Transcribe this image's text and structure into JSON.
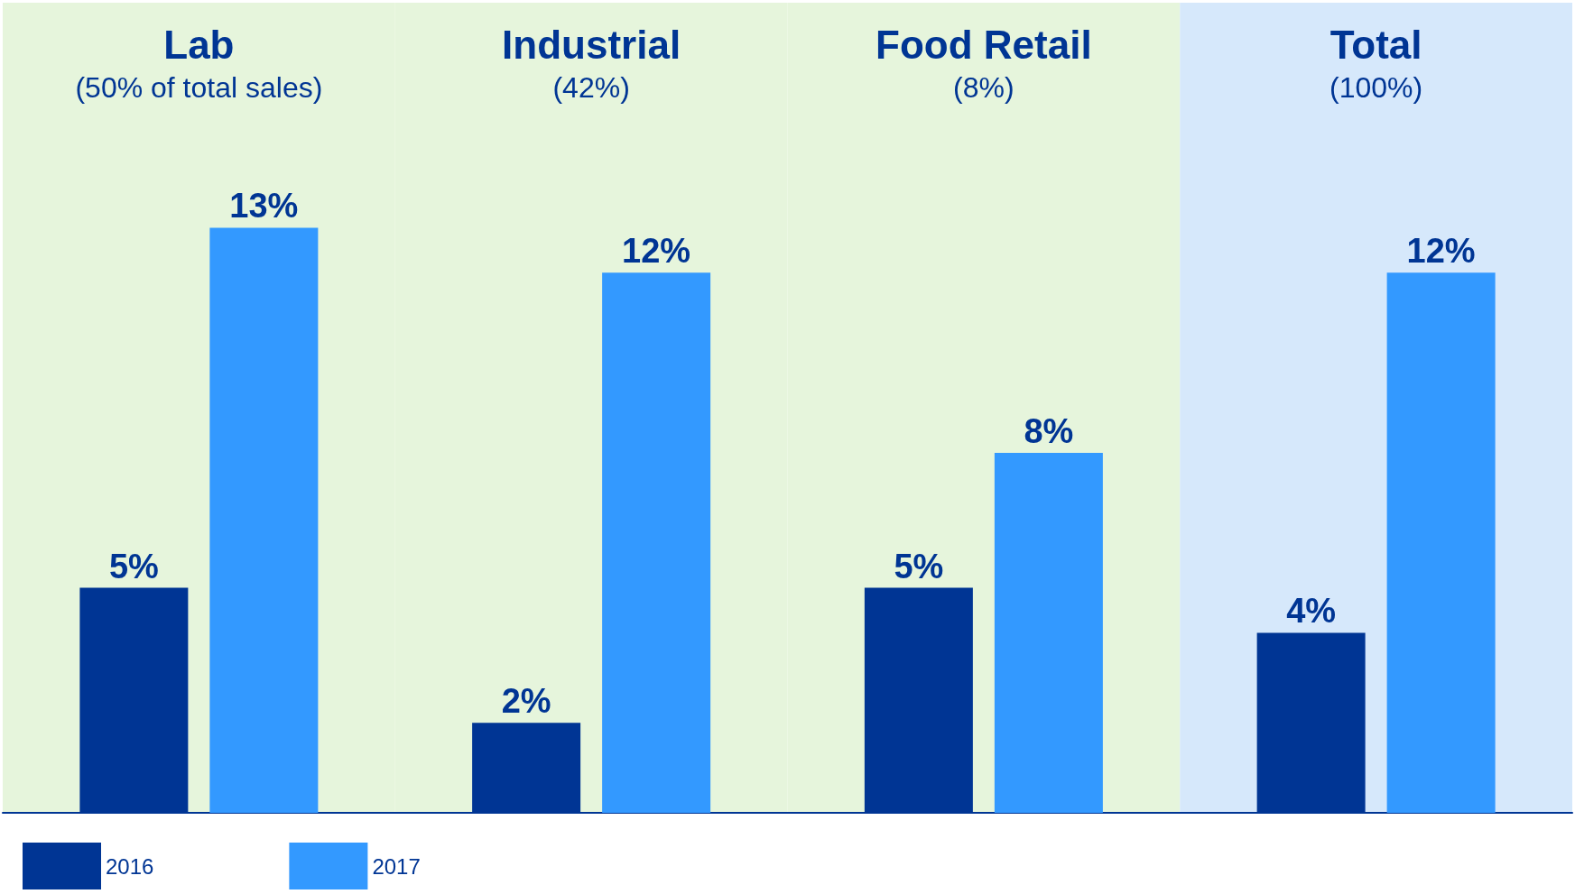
{
  "chart_data": {
    "type": "bar",
    "categories": [
      "Lab\n(50% of total sales)",
      "Industrial\n(42%)",
      "Food Retail\n(8%)",
      "Total\n(100%)"
    ],
    "series": [
      {
        "name": "2016",
        "color": "#003594",
        "values": [
          5,
          2,
          5,
          4
        ],
        "value_labels": [
          "5%",
          "2%",
          "5%",
          "4%"
        ]
      },
      {
        "name": "2017",
        "color": "#3399ff",
        "values": [
          13,
          12,
          8,
          12
        ],
        "value_labels": [
          "13%",
          "12%",
          "8%",
          "12%"
        ]
      }
    ],
    "ylim": [
      0,
      18
    ],
    "tick_labels": "x",
    "grid": false,
    "legend": "bottom left",
    "bands": [
      {
        "axis": "x",
        "from": "Lab\n(50% of total sales)",
        "to": "Lab\n(50% of total sales)",
        "color": "#e6f5dc"
      },
      {
        "axis": "x",
        "from": "Industrial\n(42%)",
        "to": "Industrial\n(42%)",
        "color": "#e6f5dc"
      },
      {
        "axis": "x",
        "from": "Food Retail\n(8%)",
        "to": "Food Retail\n(8%)",
        "color": "#e6f5dc"
      },
      {
        "axis": "x",
        "from": "Total\n(100%)",
        "to": "Total\n(100%)",
        "color": "#d6e8fb"
      }
    ]
  }
}
